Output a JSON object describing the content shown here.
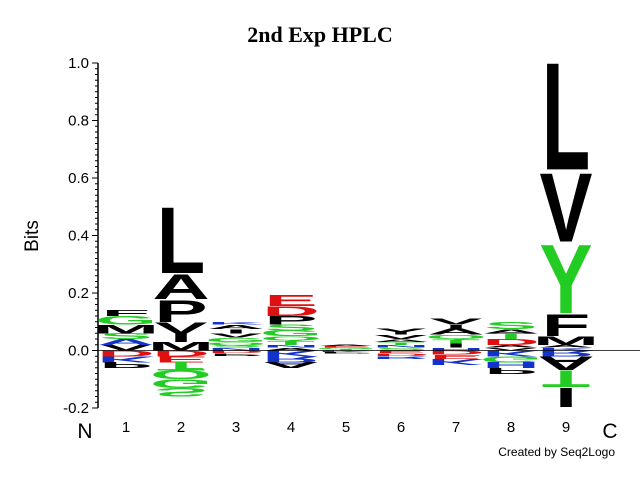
{
  "chart_data": {
    "type": "sequence-logo",
    "title": "2nd Exp HPLC",
    "ylabel": "Bits",
    "ylim": [
      -0.2,
      1.0
    ],
    "y_ticks": [
      -0.2,
      0.0,
      0.2,
      0.4,
      0.6,
      0.8,
      1.0
    ],
    "y_tick_labels": [
      "-0.2",
      "0.0",
      "0.2",
      "0.4",
      "0.6",
      "0.8",
      "1.0"
    ],
    "x_positions": [
      "1",
      "2",
      "3",
      "4",
      "5",
      "6",
      "7",
      "8",
      "9"
    ],
    "n_terminal_label": "N",
    "c_terminal_label": "C",
    "credit": "Created by Seq2Logo",
    "colors": {
      "black": "#000000",
      "green": "#22cc22",
      "red": "#dd1111",
      "blue": "#1133cc"
    },
    "positions": [
      {
        "pos": 1,
        "positive": [
          {
            "aa": "V",
            "bits": 0.02,
            "color": "black"
          },
          {
            "aa": "A",
            "bits": 0.02,
            "color": "blue"
          },
          {
            "aa": "S",
            "bits": 0.02,
            "color": "green"
          },
          {
            "aa": "M",
            "bits": 0.03,
            "color": "black"
          },
          {
            "aa": "G",
            "bits": 0.03,
            "color": "green"
          },
          {
            "aa": "F",
            "bits": 0.02,
            "color": "black"
          }
        ],
        "negative": [
          {
            "aa": "D",
            "bits": 0.02,
            "color": "red"
          },
          {
            "aa": "K",
            "bits": 0.02,
            "color": "blue"
          },
          {
            "aa": "P",
            "bits": 0.02,
            "color": "black"
          }
        ]
      },
      {
        "pos": 2,
        "positive": [
          {
            "aa": "M",
            "bits": 0.03,
            "color": "black"
          },
          {
            "aa": "I",
            "bits": 0.03,
            "color": "black"
          },
          {
            "aa": "V",
            "bits": 0.04,
            "color": "black"
          },
          {
            "aa": "P",
            "bits": 0.08,
            "color": "black"
          },
          {
            "aa": "A",
            "bits": 0.09,
            "color": "black"
          },
          {
            "aa": "L",
            "bits": 0.24,
            "color": "black"
          }
        ],
        "negative": [
          {
            "aa": "D",
            "bits": 0.02,
            "color": "red"
          },
          {
            "aa": "E",
            "bits": 0.02,
            "color": "red"
          },
          {
            "aa": "T",
            "bits": 0.03,
            "color": "green"
          },
          {
            "aa": "Q",
            "bits": 0.03,
            "color": "green"
          },
          {
            "aa": "G",
            "bits": 0.03,
            "color": "green"
          },
          {
            "aa": "S",
            "bits": 0.03,
            "color": "green"
          }
        ]
      },
      {
        "pos": 3,
        "positive": [
          {
            "aa": "N",
            "bits": 0.01,
            "color": "blue"
          },
          {
            "aa": "S",
            "bits": 0.01,
            "color": "green"
          },
          {
            "aa": "Q",
            "bits": 0.01,
            "color": "green"
          },
          {
            "aa": "G",
            "bits": 0.015,
            "color": "green"
          },
          {
            "aa": "V",
            "bits": 0.015,
            "color": "black"
          },
          {
            "aa": "I",
            "bits": 0.015,
            "color": "black"
          },
          {
            "aa": "A",
            "bits": 0.015,
            "color": "black"
          },
          {
            "aa": "K",
            "bits": 0.01,
            "color": "blue"
          }
        ],
        "negative": [
          {
            "aa": "D",
            "bits": 0.01,
            "color": "red"
          },
          {
            "aa": "P",
            "bits": 0.01,
            "color": "black"
          }
        ]
      },
      {
        "pos": 4,
        "positive": [
          {
            "aa": "A",
            "bits": 0.01,
            "color": "black"
          },
          {
            "aa": "N",
            "bits": 0.01,
            "color": "blue"
          },
          {
            "aa": "T",
            "bits": 0.015,
            "color": "green"
          },
          {
            "aa": "Q",
            "bits": 0.015,
            "color": "green"
          },
          {
            "aa": "G",
            "bits": 0.02,
            "color": "green"
          },
          {
            "aa": "S",
            "bits": 0.02,
            "color": "green"
          },
          {
            "aa": "P",
            "bits": 0.03,
            "color": "black"
          },
          {
            "aa": "D",
            "bits": 0.035,
            "color": "red"
          },
          {
            "aa": "E",
            "bits": 0.04,
            "color": "red"
          }
        ],
        "negative": [
          {
            "aa": "K",
            "bits": 0.02,
            "color": "blue"
          },
          {
            "aa": "R",
            "bits": 0.02,
            "color": "blue"
          },
          {
            "aa": "A",
            "bits": 0.02,
            "color": "black"
          }
        ]
      },
      {
        "pos": 5,
        "positive": [
          {
            "aa": "T",
            "bits": 0.005,
            "color": "green"
          },
          {
            "aa": "G",
            "bits": 0.005,
            "color": "green"
          },
          {
            "aa": "E",
            "bits": 0.005,
            "color": "red"
          },
          {
            "aa": "A",
            "bits": 0.005,
            "color": "black"
          }
        ],
        "negative": [
          {
            "aa": "K",
            "bits": 0.005,
            "color": "blue"
          },
          {
            "aa": "P",
            "bits": 0.005,
            "color": "black"
          }
        ]
      },
      {
        "pos": 6,
        "positive": [
          {
            "aa": "S",
            "bits": 0.01,
            "color": "green"
          },
          {
            "aa": "N",
            "bits": 0.01,
            "color": "blue"
          },
          {
            "aa": "T",
            "bits": 0.01,
            "color": "green"
          },
          {
            "aa": "A",
            "bits": 0.01,
            "color": "black"
          },
          {
            "aa": "V",
            "bits": 0.015,
            "color": "black"
          },
          {
            "aa": "Y",
            "bits": 0.02,
            "color": "black"
          }
        ],
        "negative": [
          {
            "aa": "E",
            "bits": 0.01,
            "color": "red"
          },
          {
            "aa": "D",
            "bits": 0.01,
            "color": "red"
          },
          {
            "aa": "R",
            "bits": 0.01,
            "color": "blue"
          }
        ]
      },
      {
        "pos": 7,
        "positive": [
          {
            "aa": "H",
            "bits": 0.01,
            "color": "blue"
          },
          {
            "aa": "I",
            "bits": 0.015,
            "color": "black"
          },
          {
            "aa": "T",
            "bits": 0.015,
            "color": "green"
          },
          {
            "aa": "Q",
            "bits": 0.015,
            "color": "green"
          },
          {
            "aa": "A",
            "bits": 0.02,
            "color": "black"
          },
          {
            "aa": "I",
            "bits": 0.015,
            "color": "black"
          },
          {
            "aa": "V",
            "bits": 0.02,
            "color": "black"
          }
        ],
        "negative": [
          {
            "aa": "D",
            "bits": 0.015,
            "color": "red"
          },
          {
            "aa": "E",
            "bits": 0.015,
            "color": "red"
          },
          {
            "aa": "K",
            "bits": 0.02,
            "color": "blue"
          }
        ]
      },
      {
        "pos": 8,
        "positive": [
          {
            "aa": "V",
            "bits": 0.01,
            "color": "black"
          },
          {
            "aa": "A",
            "bits": 0.01,
            "color": "black"
          },
          {
            "aa": "D",
            "bits": 0.02,
            "color": "red"
          },
          {
            "aa": "T",
            "bits": 0.02,
            "color": "green"
          },
          {
            "aa": "A",
            "bits": 0.015,
            "color": "black"
          },
          {
            "aa": "S",
            "bits": 0.025,
            "color": "green"
          }
        ],
        "negative": [
          {
            "aa": "K",
            "bits": 0.02,
            "color": "blue"
          },
          {
            "aa": "G",
            "bits": 0.02,
            "color": "green"
          },
          {
            "aa": "H",
            "bits": 0.02,
            "color": "blue"
          },
          {
            "aa": "P",
            "bits": 0.02,
            "color": "black"
          }
        ]
      },
      {
        "pos": 9,
        "positive": [
          {
            "aa": "K",
            "bits": 0.01,
            "color": "blue"
          },
          {
            "aa": "A",
            "bits": 0.01,
            "color": "black"
          },
          {
            "aa": "M",
            "bits": 0.03,
            "color": "black"
          },
          {
            "aa": "F",
            "bits": 0.08,
            "color": "black"
          },
          {
            "aa": "Y",
            "bits": 0.25,
            "color": "green"
          },
          {
            "aa": "V",
            "bits": 0.25,
            "color": "black"
          },
          {
            "aa": "L",
            "bits": 0.39,
            "color": "black"
          }
        ],
        "negative": [
          {
            "aa": "R",
            "bits": 0.02,
            "color": "blue"
          },
          {
            "aa": "A",
            "bits": 0.05,
            "color": "black"
          },
          {
            "aa": "T",
            "bits": 0.06,
            "color": "green"
          },
          {
            "aa": "I",
            "bits": 0.07,
            "color": "black"
          }
        ]
      }
    ]
  }
}
